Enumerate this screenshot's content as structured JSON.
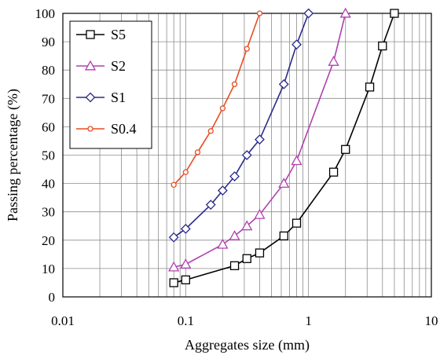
{
  "chart_data": {
    "type": "line",
    "title": "",
    "xlabel": "Aggregates size (mm)",
    "ylabel": "Passing percentage (%)",
    "xscale": "log",
    "xlim": [
      0.01,
      10
    ],
    "ylim": [
      0,
      100
    ],
    "grid": true,
    "legend_position": "top-left",
    "x_tick_labels": [
      "0.01",
      "0.1",
      "1",
      "10"
    ],
    "y_tick_labels": [
      "0",
      "10",
      "20",
      "30",
      "40",
      "50",
      "60",
      "70",
      "80",
      "90",
      "100"
    ],
    "series": [
      {
        "name": "S5",
        "color": "#000000",
        "marker": "square",
        "x": [
          0.08,
          0.1,
          0.25,
          0.315,
          0.4,
          0.63,
          0.8,
          1.6,
          2.0,
          3.15,
          4.0,
          5.0
        ],
        "y": [
          5,
          6,
          11,
          13.5,
          15.5,
          21.5,
          26,
          44,
          52,
          74,
          88.5,
          100
        ]
      },
      {
        "name": "S2",
        "color": "#b040b0",
        "marker": "triangle",
        "x": [
          0.08,
          0.1,
          0.2,
          0.25,
          0.315,
          0.4,
          0.63,
          0.8,
          1.6,
          2.0
        ],
        "y": [
          10.5,
          11.5,
          18.5,
          21.5,
          25,
          29,
          40,
          48,
          83,
          100
        ]
      },
      {
        "name": "S1",
        "color": "#2a2a8a",
        "marker": "diamond",
        "x": [
          0.08,
          0.1,
          0.16,
          0.2,
          0.25,
          0.315,
          0.4,
          0.63,
          0.8,
          1.0
        ],
        "y": [
          21,
          24,
          32.5,
          37.5,
          42.5,
          50,
          55.5,
          75,
          89,
          100
        ]
      },
      {
        "name": "S0.4",
        "color": "#e84c22",
        "marker": "circle",
        "x": [
          0.08,
          0.1,
          0.125,
          0.16,
          0.2,
          0.25,
          0.315,
          0.4
        ],
        "y": [
          39.5,
          44,
          51,
          58.5,
          66.5,
          75,
          87.5,
          100
        ]
      }
    ]
  }
}
